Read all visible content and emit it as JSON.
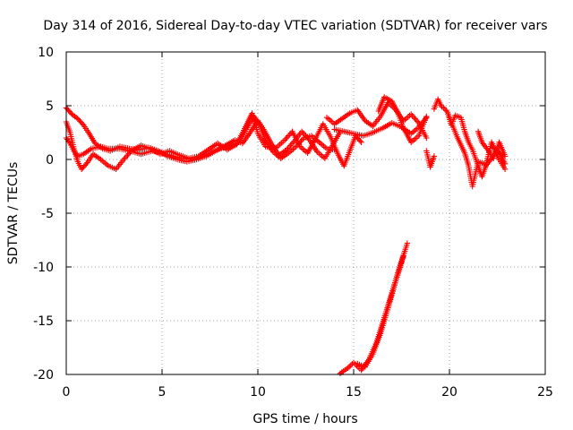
{
  "chart_data": {
    "type": "scatter",
    "title": "Day 314 of 2016, Sidereal Day-to-day VTEC variation (SDTVAR) for receiver vars",
    "xlabel": "GPS time / hours",
    "ylabel": "SDTVAR / TECUs",
    "xlim": [
      0,
      25
    ],
    "ylim": [
      -20,
      10
    ],
    "xticks": [
      "0",
      "5",
      "10",
      "15",
      "20",
      "25"
    ],
    "yticks": [
      "-20",
      "-15",
      "-10",
      "-5",
      "0",
      "5",
      "10"
    ],
    "grid": true,
    "marker": "+",
    "series": [
      {
        "name": "SDTVAR",
        "color": "#ff0000",
        "tracks": [
          [
            [
              0.0,
              2.0
            ],
            [
              0.2,
              1.5
            ],
            [
              0.4,
              0.8
            ],
            [
              0.6,
              0.3
            ],
            [
              0.9,
              0.5
            ],
            [
              1.3,
              1.0
            ],
            [
              1.8,
              1.2
            ],
            [
              2.2,
              1.0
            ],
            [
              2.8,
              1.0
            ],
            [
              3.3,
              0.8
            ],
            [
              3.9,
              0.5
            ],
            [
              4.5,
              0.8
            ],
            [
              5.0,
              0.6
            ],
            [
              5.6,
              0.3
            ],
            [
              6.0,
              0.1
            ],
            [
              6.6,
              0.0
            ],
            [
              7.0,
              0.2
            ],
            [
              7.5,
              0.6
            ],
            [
              8.0,
              1.0
            ],
            [
              8.5,
              1.2
            ],
            [
              9.0,
              1.6
            ],
            [
              9.4,
              2.8
            ],
            [
              9.8,
              4.0
            ],
            [
              10.1,
              3.2
            ],
            [
              10.4,
              1.8
            ],
            [
              10.8,
              0.7
            ],
            [
              11.2,
              0.1
            ],
            [
              11.6,
              0.6
            ],
            [
              12.0,
              1.2
            ],
            [
              12.4,
              2.0
            ],
            [
              12.8,
              2.2
            ],
            [
              13.2,
              1.6
            ],
            [
              13.6,
              1.0
            ],
            [
              14.0,
              0.9
            ]
          ],
          [
            [
              0.0,
              4.8
            ],
            [
              0.3,
              4.2
            ],
            [
              0.6,
              3.8
            ],
            [
              0.9,
              3.2
            ],
            [
              1.2,
              2.4
            ],
            [
              1.5,
              1.5
            ],
            [
              1.9,
              1.0
            ],
            [
              2.3,
              0.8
            ],
            [
              2.8,
              1.2
            ],
            [
              3.3,
              1.0
            ],
            [
              3.8,
              0.9
            ],
            [
              4.3,
              1.1
            ],
            [
              4.8,
              0.8
            ],
            [
              5.3,
              0.3
            ],
            [
              5.8,
              0.0
            ],
            [
              6.3,
              -0.2
            ],
            [
              6.8,
              0.0
            ],
            [
              7.3,
              0.3
            ],
            [
              7.8,
              0.8
            ],
            [
              8.3,
              1.3
            ],
            [
              8.8,
              1.8
            ],
            [
              9.2,
              1.5
            ],
            [
              9.6,
              2.5
            ],
            [
              10.0,
              3.6
            ],
            [
              10.3,
              2.8
            ],
            [
              10.7,
              1.5
            ],
            [
              11.1,
              0.4
            ],
            [
              11.5,
              0.9
            ],
            [
              11.9,
              1.7
            ],
            [
              12.3,
              2.6
            ],
            [
              12.7,
              1.8
            ],
            [
              13.1,
              0.7
            ],
            [
              13.5,
              0.1
            ],
            [
              13.9,
              1.3
            ],
            [
              14.3,
              2.6
            ]
          ],
          [
            [
              0.0,
              3.5
            ],
            [
              0.2,
              2.5
            ],
            [
              0.4,
              1.0
            ],
            [
              0.6,
              -0.2
            ],
            [
              0.8,
              -0.9
            ],
            [
              1.1,
              -0.3
            ],
            [
              1.4,
              0.5
            ],
            [
              1.8,
              0.0
            ],
            [
              2.2,
              -0.6
            ],
            [
              2.6,
              -0.9
            ],
            [
              3.0,
              0.0
            ],
            [
              3.4,
              0.8
            ],
            [
              3.9,
              1.3
            ],
            [
              4.4,
              1.0
            ],
            [
              4.9,
              0.5
            ],
            [
              5.4,
              0.8
            ],
            [
              5.9,
              0.4
            ],
            [
              6.4,
              0.1
            ],
            [
              6.9,
              0.3
            ],
            [
              7.4,
              0.9
            ],
            [
              7.9,
              1.5
            ],
            [
              8.4,
              0.9
            ],
            [
              8.9,
              1.4
            ],
            [
              9.4,
              3.2
            ],
            [
              9.7,
              4.3
            ],
            [
              10.0,
              2.4
            ],
            [
              10.4,
              1.2
            ],
            [
              10.9,
              1.0
            ],
            [
              11.4,
              1.8
            ],
            [
              11.8,
              2.6
            ],
            [
              12.2,
              1.2
            ],
            [
              12.6,
              0.6
            ],
            [
              13.0,
              1.9
            ],
            [
              13.4,
              3.3
            ],
            [
              13.8,
              2.1
            ],
            [
              14.2,
              0.4
            ],
            [
              14.5,
              -0.6
            ],
            [
              14.8,
              0.8
            ],
            [
              15.1,
              2.2
            ],
            [
              15.4,
              1.6
            ]
          ],
          [
            [
              13.6,
              3.9
            ],
            [
              14.0,
              3.3
            ],
            [
              14.4,
              3.8
            ],
            [
              14.8,
              4.3
            ],
            [
              15.2,
              4.6
            ],
            [
              15.6,
              3.6
            ],
            [
              16.0,
              3.1
            ],
            [
              16.4,
              4.0
            ],
            [
              16.8,
              5.3
            ],
            [
              17.2,
              4.6
            ],
            [
              17.6,
              3.6
            ],
            [
              18.0,
              4.2
            ],
            [
              18.4,
              3.4
            ],
            [
              18.8,
              2.0
            ]
          ],
          [
            [
              14.0,
              2.8
            ],
            [
              14.5,
              2.6
            ],
            [
              15.0,
              2.4
            ],
            [
              15.5,
              2.2
            ],
            [
              16.0,
              2.5
            ],
            [
              16.5,
              2.9
            ],
            [
              17.0,
              3.4
            ],
            [
              17.5,
              3.0
            ],
            [
              18.0,
              2.4
            ],
            [
              18.4,
              3.0
            ],
            [
              18.8,
              3.9
            ]
          ],
          [
            [
              16.3,
              4.5
            ],
            [
              16.6,
              5.8
            ],
            [
              17.0,
              5.4
            ],
            [
              17.3,
              4.4
            ],
            [
              17.6,
              2.9
            ],
            [
              18.0,
              1.6
            ],
            [
              18.4,
              2.2
            ],
            [
              18.8,
              4.0
            ]
          ],
          [
            [
              19.2,
              4.7
            ],
            [
              19.4,
              5.6
            ],
            [
              19.6,
              4.9
            ]
          ],
          [
            [
              19.7,
              4.8
            ],
            [
              19.9,
              4.4
            ],
            [
              20.1,
              3.2
            ],
            [
              20.3,
              4.1
            ],
            [
              20.6,
              3.9
            ],
            [
              20.8,
              2.6
            ],
            [
              21.0,
              1.6
            ],
            [
              21.2,
              0.9
            ],
            [
              21.5,
              -0.6
            ],
            [
              21.7,
              -1.6
            ],
            [
              21.9,
              -0.6
            ],
            [
              22.2,
              0.1
            ],
            [
              22.5,
              0.9
            ],
            [
              22.7,
              0.4
            ],
            [
              22.9,
              -0.4
            ]
          ],
          [
            [
              20.0,
              3.9
            ],
            [
              20.4,
              2.1
            ],
            [
              20.8,
              0.6
            ],
            [
              21.0,
              -0.6
            ],
            [
              21.2,
              -2.5
            ],
            [
              21.5,
              -0.2
            ],
            [
              21.9,
              -0.5
            ],
            [
              22.2,
              1.6
            ],
            [
              22.5,
              0.3
            ],
            [
              22.9,
              -0.9
            ]
          ],
          [
            [
              21.5,
              2.6
            ],
            [
              21.7,
              1.6
            ],
            [
              22.0,
              0.9
            ],
            [
              22.3,
              0.1
            ],
            [
              22.6,
              1.6
            ],
            [
              22.9,
              0.3
            ]
          ],
          [
            [
              18.8,
              0.8
            ],
            [
              19.0,
              -0.7
            ],
            [
              19.2,
              0.3
            ]
          ],
          [
            [
              14.3,
              -19.9
            ],
            [
              14.7,
              -19.4
            ],
            [
              15.0,
              -18.9
            ],
            [
              15.4,
              -19.6
            ],
            [
              15.8,
              -18.6
            ],
            [
              16.2,
              -17.0
            ],
            [
              16.6,
              -14.7
            ],
            [
              17.0,
              -12.4
            ],
            [
              17.4,
              -10.0
            ],
            [
              17.8,
              -7.8
            ]
          ],
          [
            [
              15.2,
              -19.0
            ],
            [
              15.6,
              -19.3
            ],
            [
              16.0,
              -18.1
            ],
            [
              16.4,
              -16.2
            ],
            [
              16.8,
              -13.8
            ],
            [
              17.2,
              -11.3
            ],
            [
              17.6,
              -9.0
            ]
          ]
        ]
      }
    ]
  }
}
